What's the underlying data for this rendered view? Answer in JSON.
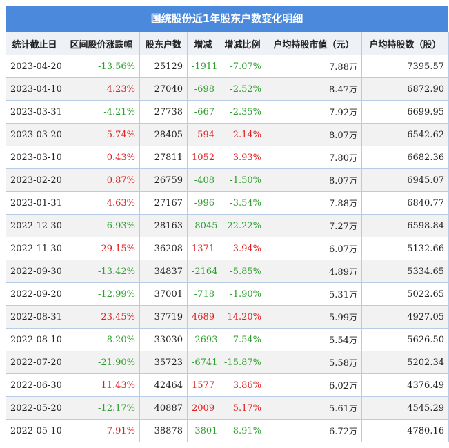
{
  "title": "国统股份近1年股东户数变化明细",
  "headers": [
    "统计截止日",
    "区间股价涨跌幅",
    "股东户数",
    "增减",
    "增减比例",
    "户均持股市值（元）",
    "户均持股数（股）"
  ],
  "colors": {
    "up": "#e02020",
    "down": "#2e9e2e",
    "header_bg": "#4a89dc"
  },
  "rows": [
    {
      "date": "2023-04-20",
      "price_change": "-13.56%",
      "holders": "25129",
      "change": "-1911",
      "change_pct": "-7.07%",
      "avg_value": "7.88",
      "avg_value_unit": "万",
      "avg_shares": "7395.57"
    },
    {
      "date": "2023-04-10",
      "price_change": "4.23%",
      "holders": "27040",
      "change": "-698",
      "change_pct": "-2.52%",
      "avg_value": "8.47",
      "avg_value_unit": "万",
      "avg_shares": "6872.90"
    },
    {
      "date": "2023-03-31",
      "price_change": "-4.21%",
      "holders": "27738",
      "change": "-667",
      "change_pct": "-2.35%",
      "avg_value": "7.92",
      "avg_value_unit": "万",
      "avg_shares": "6699.95"
    },
    {
      "date": "2023-03-20",
      "price_change": "5.74%",
      "holders": "28405",
      "change": "594",
      "change_pct": "2.14%",
      "avg_value": "8.07",
      "avg_value_unit": "万",
      "avg_shares": "6542.62"
    },
    {
      "date": "2023-03-10",
      "price_change": "0.43%",
      "holders": "27811",
      "change": "1052",
      "change_pct": "3.93%",
      "avg_value": "7.80",
      "avg_value_unit": "万",
      "avg_shares": "6682.36"
    },
    {
      "date": "2023-02-20",
      "price_change": "0.87%",
      "holders": "26759",
      "change": "-408",
      "change_pct": "-1.50%",
      "avg_value": "8.07",
      "avg_value_unit": "万",
      "avg_shares": "6945.07"
    },
    {
      "date": "2023-01-31",
      "price_change": "4.63%",
      "holders": "27167",
      "change": "-996",
      "change_pct": "-3.54%",
      "avg_value": "7.88",
      "avg_value_unit": "万",
      "avg_shares": "6840.77"
    },
    {
      "date": "2022-12-30",
      "price_change": "-6.93%",
      "holders": "28163",
      "change": "-8045",
      "change_pct": "-22.22%",
      "avg_value": "7.27",
      "avg_value_unit": "万",
      "avg_shares": "6598.84"
    },
    {
      "date": "2022-11-30",
      "price_change": "29.15%",
      "holders": "36208",
      "change": "1371",
      "change_pct": "3.94%",
      "avg_value": "6.07",
      "avg_value_unit": "万",
      "avg_shares": "5132.66"
    },
    {
      "date": "2022-09-30",
      "price_change": "-13.42%",
      "holders": "34837",
      "change": "-2164",
      "change_pct": "-5.85%",
      "avg_value": "4.89",
      "avg_value_unit": "万",
      "avg_shares": "5334.65"
    },
    {
      "date": "2022-09-20",
      "price_change": "-12.99%",
      "holders": "37001",
      "change": "-718",
      "change_pct": "-1.90%",
      "avg_value": "5.31",
      "avg_value_unit": "万",
      "avg_shares": "5022.65"
    },
    {
      "date": "2022-08-31",
      "price_change": "23.45%",
      "holders": "37719",
      "change": "4689",
      "change_pct": "14.20%",
      "avg_value": "5.99",
      "avg_value_unit": "万",
      "avg_shares": "4927.05"
    },
    {
      "date": "2022-08-10",
      "price_change": "-8.20%",
      "holders": "33030",
      "change": "-2693",
      "change_pct": "-7.54%",
      "avg_value": "5.54",
      "avg_value_unit": "万",
      "avg_shares": "5626.50"
    },
    {
      "date": "2022-07-20",
      "price_change": "-21.90%",
      "holders": "35723",
      "change": "-6741",
      "change_pct": "-15.87%",
      "avg_value": "5.58",
      "avg_value_unit": "万",
      "avg_shares": "5202.34"
    },
    {
      "date": "2022-06-30",
      "price_change": "11.43%",
      "holders": "42464",
      "change": "1577",
      "change_pct": "3.86%",
      "avg_value": "6.02",
      "avg_value_unit": "万",
      "avg_shares": "4376.49"
    },
    {
      "date": "2022-05-20",
      "price_change": "-12.17%",
      "holders": "40887",
      "change": "2009",
      "change_pct": "5.17%",
      "avg_value": "5.61",
      "avg_value_unit": "万",
      "avg_shares": "4545.29"
    },
    {
      "date": "2022-05-10",
      "price_change": "7.91%",
      "holders": "38878",
      "change": "-3801",
      "change_pct": "-8.91%",
      "avg_value": "6.72",
      "avg_value_unit": "万",
      "avg_shares": "4780.16"
    }
  ]
}
